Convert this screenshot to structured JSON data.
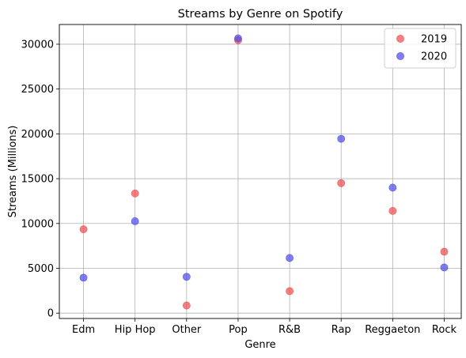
{
  "chart_data": {
    "type": "scatter",
    "title": "Streams by Genre on Spotify",
    "xlabel": "Genre",
    "ylabel": "Streams (Millions)",
    "categories": [
      "Edm",
      "Hip Hop",
      "Other",
      "Pop",
      "R&B",
      "Rap",
      "Reggaeton",
      "Rock"
    ],
    "yticks": [
      0,
      5000,
      10000,
      15000,
      20000,
      25000,
      30000
    ],
    "ylim": [
      -600,
      32200
    ],
    "grid": true,
    "legend_position": "top-right",
    "series": [
      {
        "name": "2019",
        "color": "#f0484a",
        "values": [
          9350,
          13350,
          850,
          30450,
          2450,
          14500,
          11400,
          6850
        ]
      },
      {
        "name": "2020",
        "color": "#4b48e8",
        "values": [
          3950,
          10250,
          4050,
          30650,
          6150,
          19450,
          14000,
          5100
        ]
      }
    ]
  }
}
